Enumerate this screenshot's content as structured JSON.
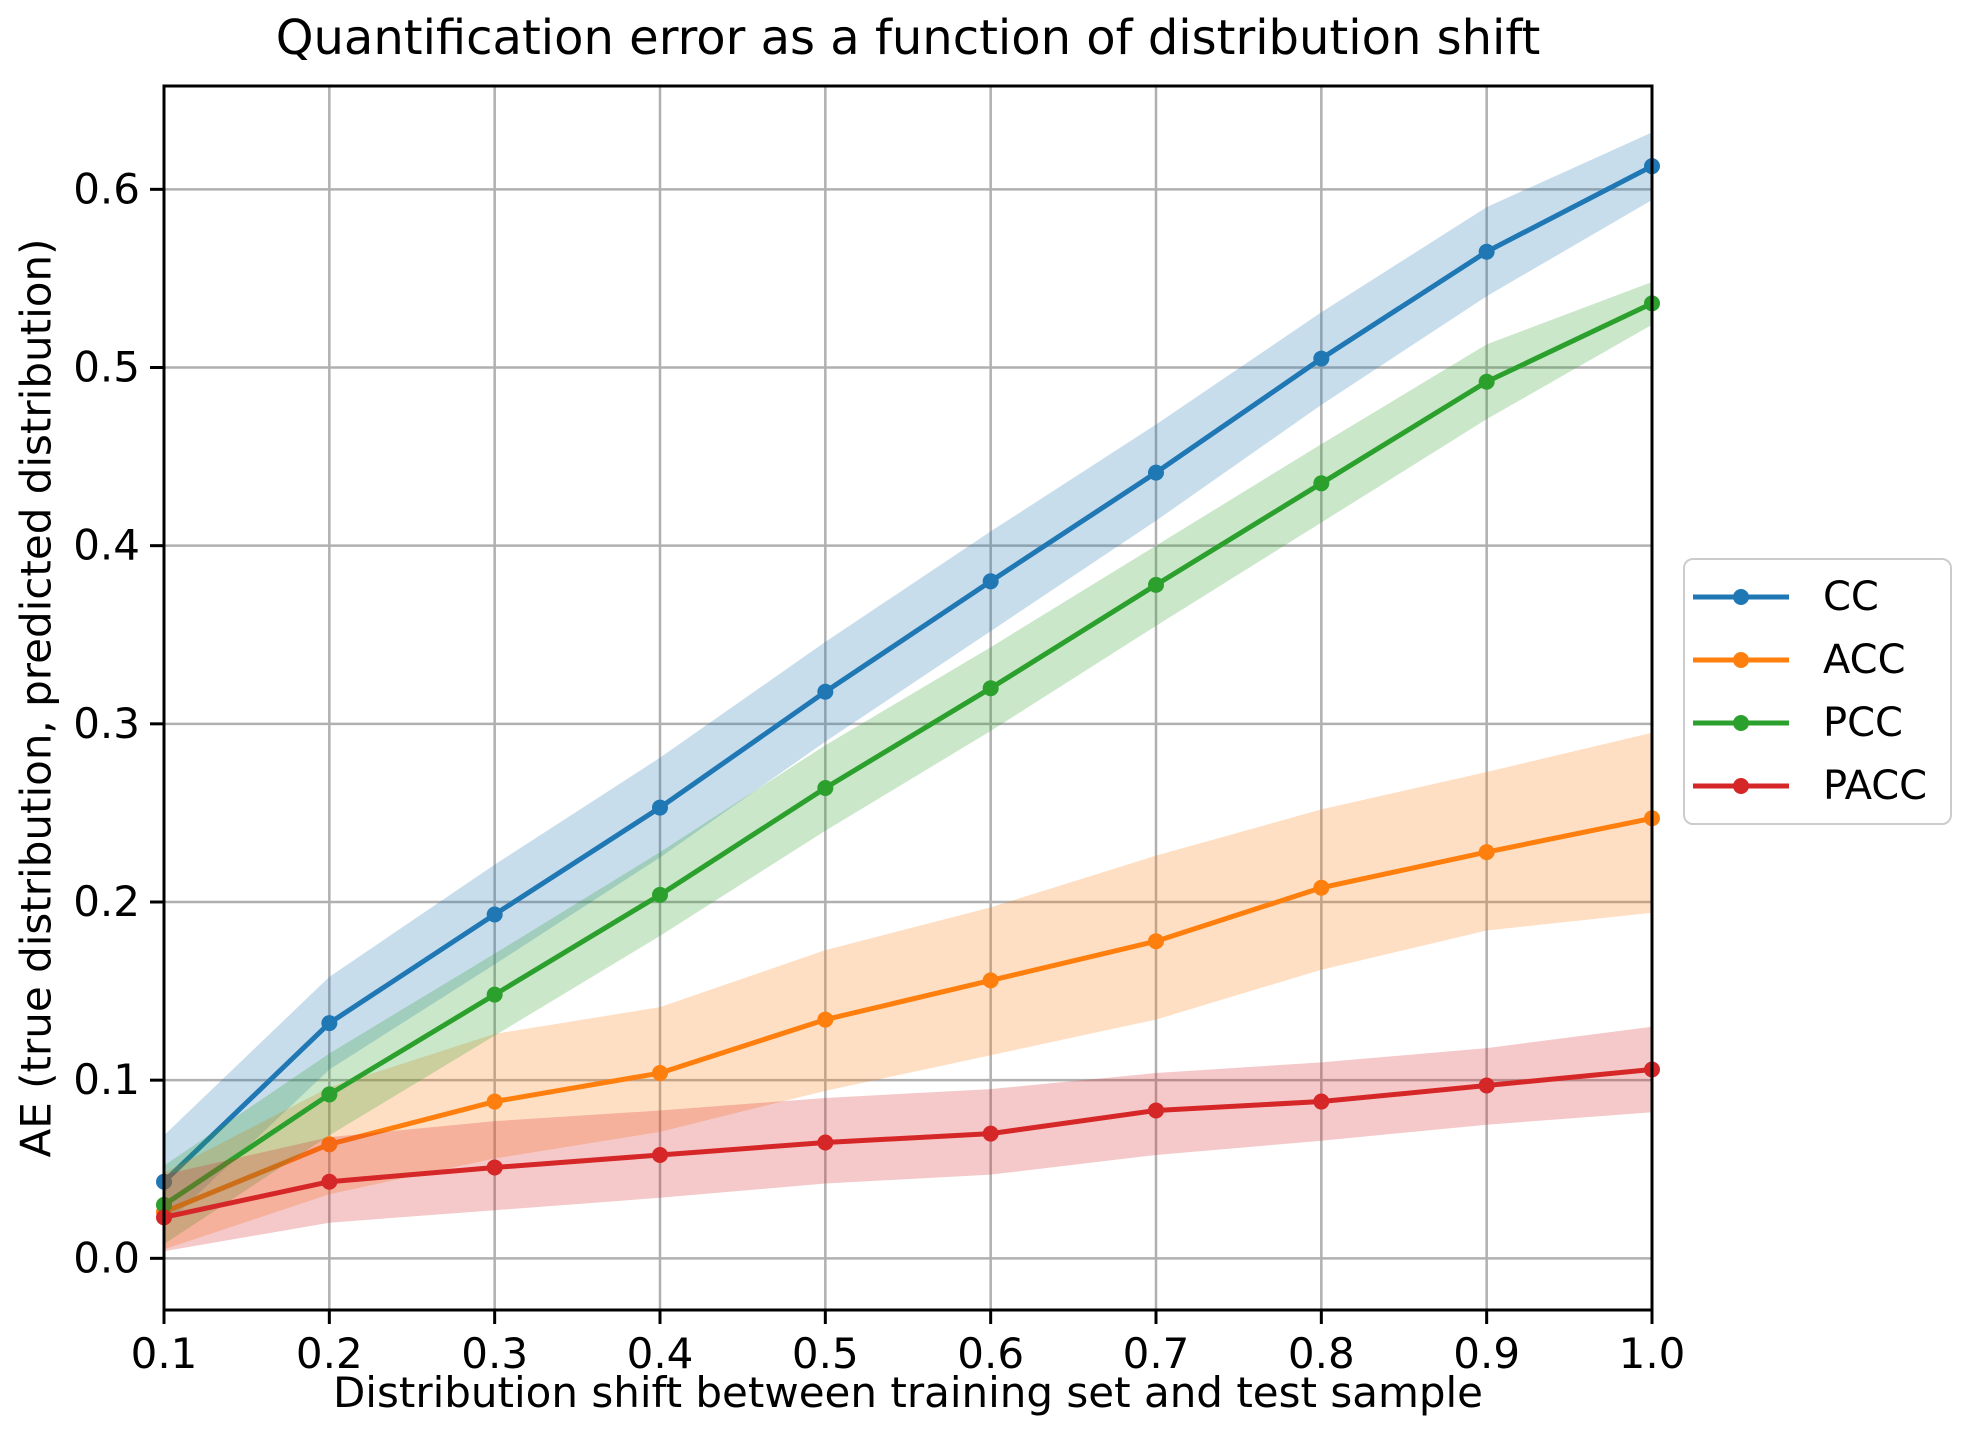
{
  "figure": {
    "background": "#ffffff"
  },
  "chart_data": {
    "type": "line",
    "title": "Quantification error as a function of distribution shift",
    "xlabel": "Distribution shift between training set and test sample",
    "ylabel": "AE (true distribution, predicted distribution)",
    "x": [
      0.1,
      0.2,
      0.3,
      0.4,
      0.5,
      0.6,
      0.7,
      0.8,
      0.9,
      1.0
    ],
    "xlim": [
      0.1,
      1.0
    ],
    "ylim": [
      -0.029,
      0.658
    ],
    "xtick_labels": [
      "0.1",
      "0.2",
      "0.3",
      "0.4",
      "0.5",
      "0.6",
      "0.7",
      "0.8",
      "0.9",
      "1.0"
    ],
    "ytick_labels": [
      "0.0",
      "0.1",
      "0.2",
      "0.3",
      "0.4",
      "0.5",
      "0.6"
    ],
    "ytick_values": [
      0.0,
      0.1,
      0.2,
      0.3,
      0.4,
      0.5,
      0.6
    ],
    "grid": true,
    "grid_color": "#b0b0b0",
    "spine_color": "#000000",
    "band_opacity": 0.25,
    "marker": "circle",
    "legend_position": "outside-center-right",
    "series": [
      {
        "name": "CC",
        "color": "#1f77b4",
        "values": [
          0.043,
          0.132,
          0.193,
          0.253,
          0.318,
          0.38,
          0.441,
          0.505,
          0.565,
          0.613
        ],
        "band_upper": [
          0.069,
          0.158,
          0.221,
          0.281,
          0.346,
          0.408,
          0.468,
          0.531,
          0.59,
          0.632
        ],
        "band_lower": [
          0.018,
          0.106,
          0.165,
          0.225,
          0.29,
          0.352,
          0.414,
          0.479,
          0.54,
          0.594
        ]
      },
      {
        "name": "ACC",
        "color": "#ff7f0e",
        "values": [
          0.026,
          0.064,
          0.088,
          0.104,
          0.134,
          0.156,
          0.178,
          0.208,
          0.228,
          0.247
        ],
        "band_upper": [
          0.048,
          0.096,
          0.126,
          0.141,
          0.173,
          0.197,
          0.226,
          0.252,
          0.273,
          0.295
        ],
        "band_lower": [
          0.005,
          0.036,
          0.056,
          0.071,
          0.094,
          0.114,
          0.134,
          0.162,
          0.184,
          0.194
        ]
      },
      {
        "name": "PCC",
        "color": "#2ca02c",
        "values": [
          0.03,
          0.092,
          0.148,
          0.204,
          0.264,
          0.32,
          0.378,
          0.435,
          0.492,
          0.536
        ],
        "band_upper": [
          0.052,
          0.115,
          0.171,
          0.228,
          0.288,
          0.343,
          0.4,
          0.457,
          0.513,
          0.548
        ],
        "band_lower": [
          0.008,
          0.069,
          0.125,
          0.181,
          0.24,
          0.296,
          0.355,
          0.413,
          0.471,
          0.524
        ]
      },
      {
        "name": "PACC",
        "color": "#d62728",
        "values": [
          0.023,
          0.043,
          0.051,
          0.058,
          0.065,
          0.07,
          0.083,
          0.088,
          0.097,
          0.106
        ],
        "band_upper": [
          0.047,
          0.068,
          0.077,
          0.083,
          0.09,
          0.095,
          0.104,
          0.11,
          0.118,
          0.13
        ],
        "band_lower": [
          0.004,
          0.02,
          0.027,
          0.034,
          0.042,
          0.047,
          0.058,
          0.066,
          0.075,
          0.082
        ]
      }
    ]
  }
}
